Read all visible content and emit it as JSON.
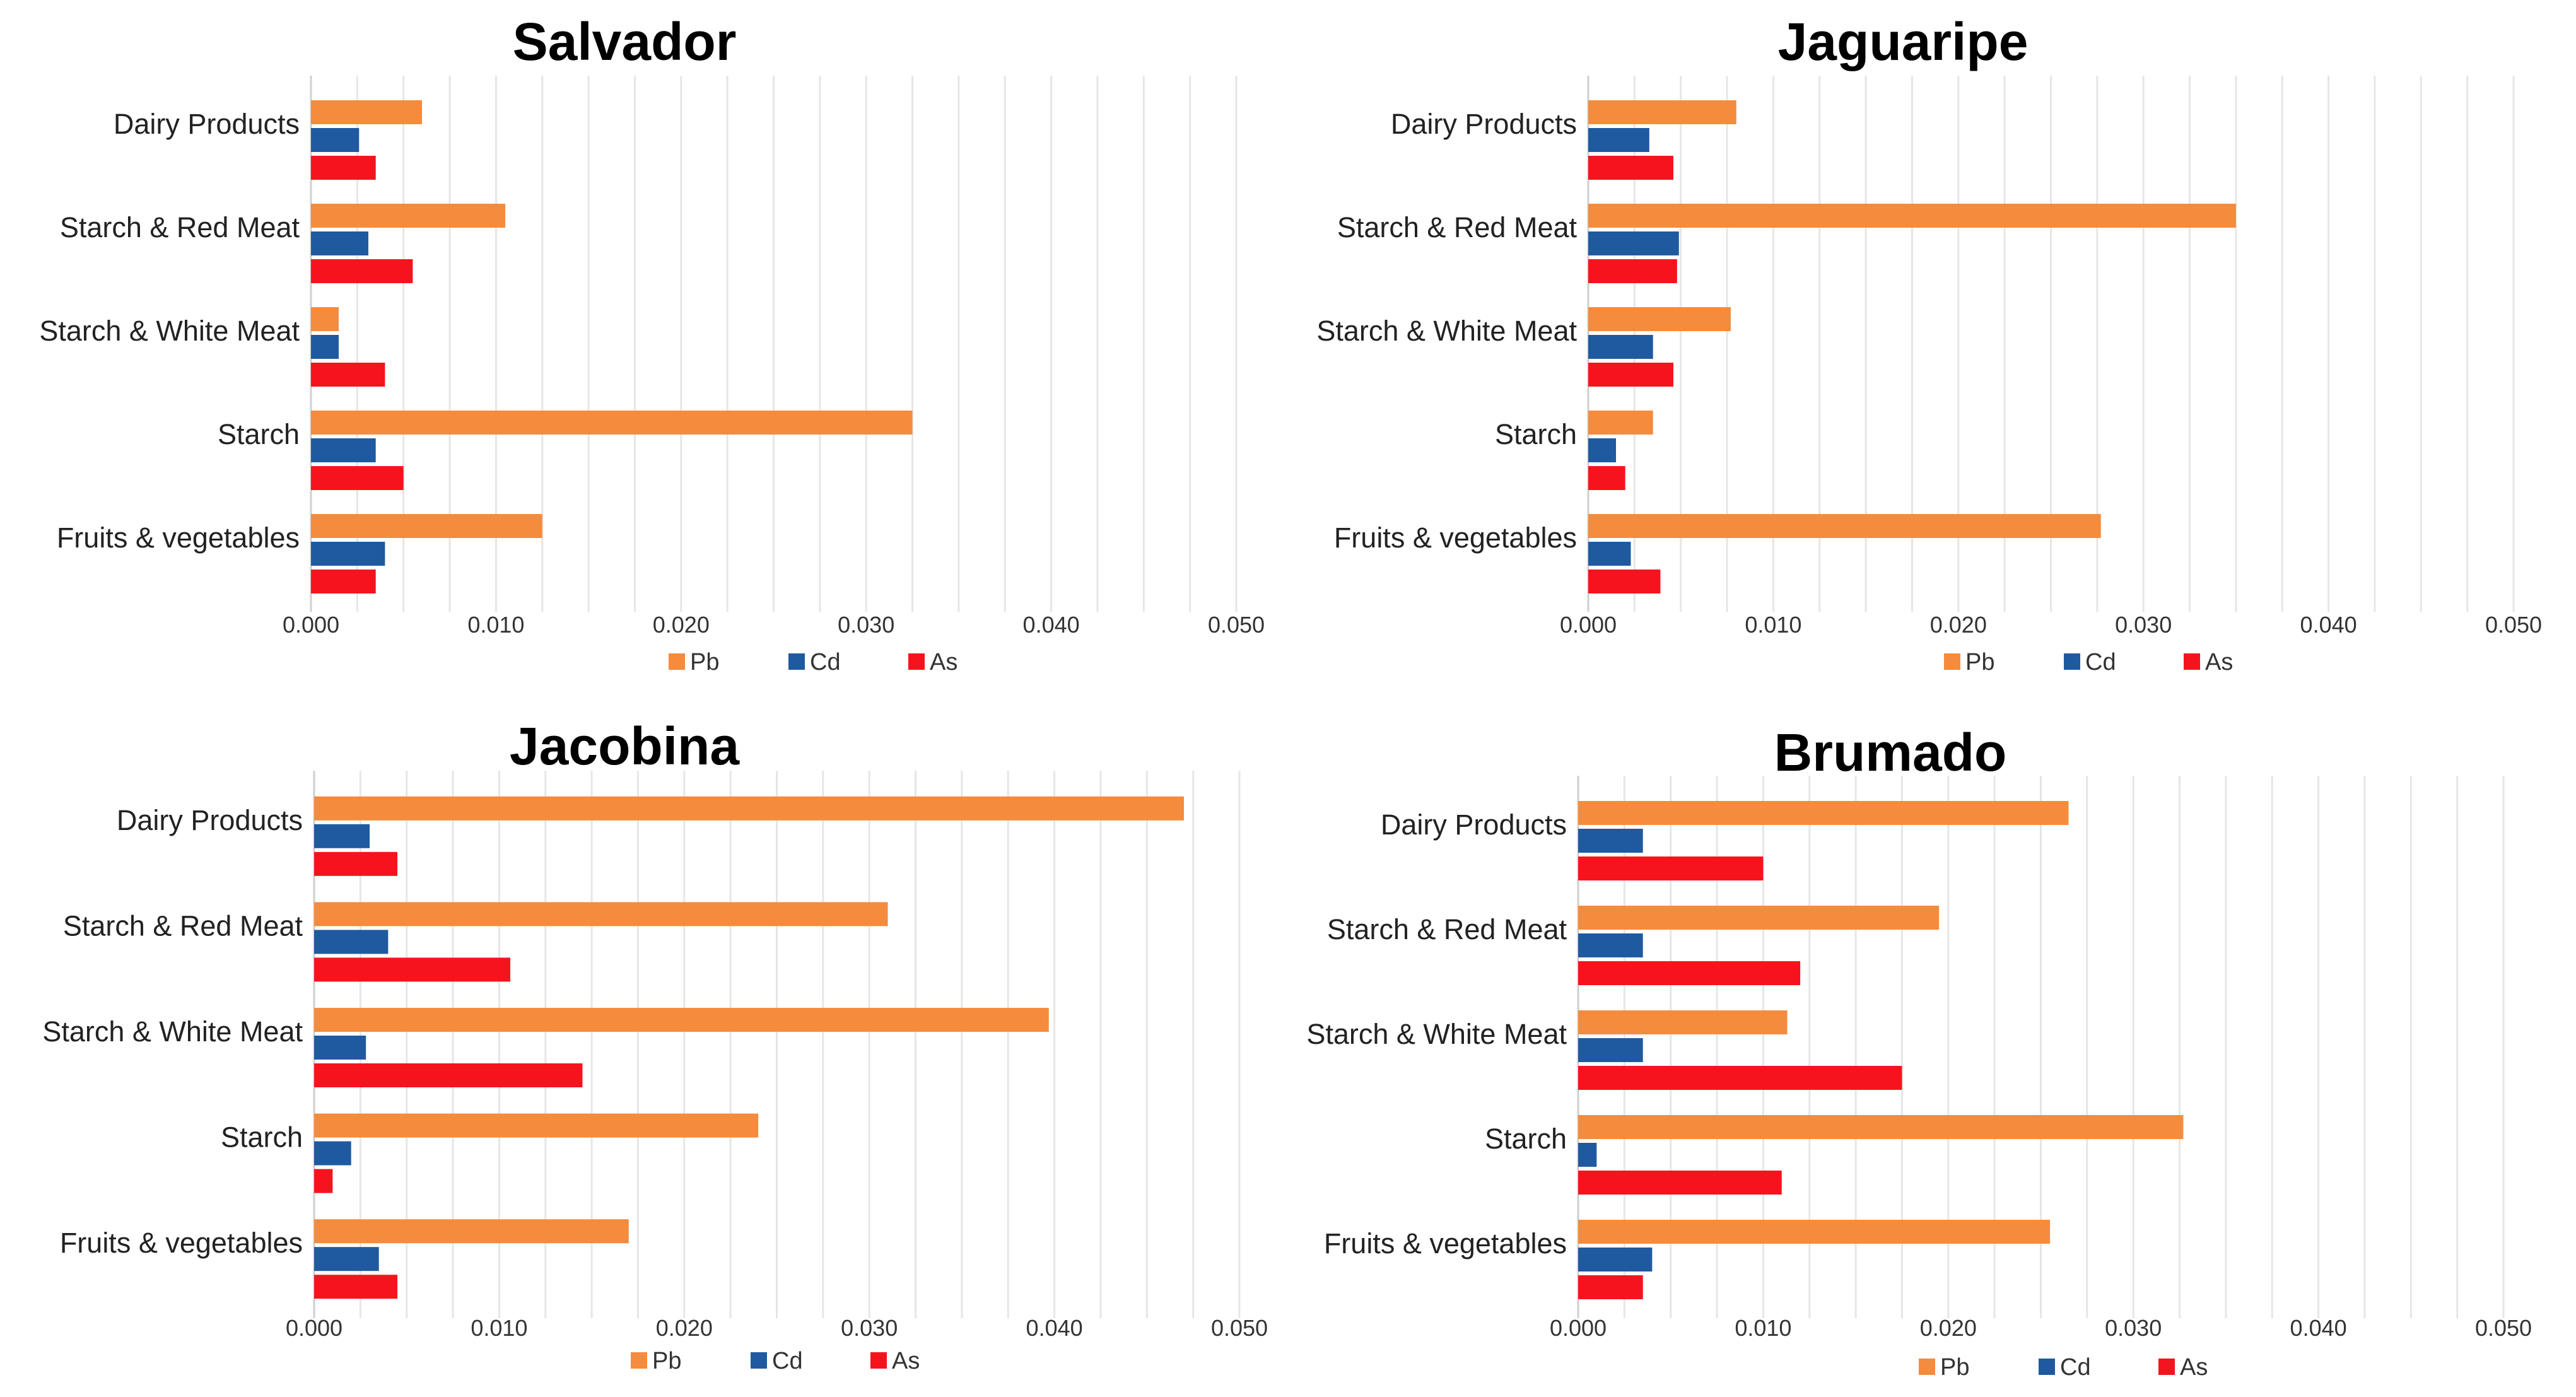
{
  "chart_data": [
    {
      "type": "bar",
      "orientation": "horizontal",
      "title": "Salvador",
      "categories": [
        "Dairy Products",
        "Starch & Red Meat",
        "Starch & White Meat",
        "Starch",
        "Fruits & vegetables"
      ],
      "series": [
        {
          "name": "Pb",
          "color": "#F58B3D",
          "values": [
            0.006,
            0.0105,
            0.0015,
            0.0325,
            0.0125
          ]
        },
        {
          "name": "Cd",
          "color": "#1F5AA0",
          "values": [
            0.0026,
            0.0031,
            0.0015,
            0.0035,
            0.004
          ]
        },
        {
          "name": "As",
          "color": "#F5141E",
          "values": [
            0.0035,
            0.0055,
            0.004,
            0.005,
            0.0035
          ]
        }
      ],
      "xlim": [
        0,
        0.05
      ],
      "xticks": [
        "0.000",
        "0.010",
        "0.020",
        "0.030",
        "0.040",
        "0.050"
      ],
      "grid": true,
      "legend": "bottom"
    },
    {
      "type": "bar",
      "orientation": "horizontal",
      "title": "Jaguaripe",
      "categories": [
        "Dairy Products",
        "Starch & Red Meat",
        "Starch & White Meat",
        "Starch",
        "Fruits & vegetables"
      ],
      "series": [
        {
          "name": "Pb",
          "color": "#F58B3D",
          "values": [
            0.008,
            0.035,
            0.0077,
            0.0035,
            0.0277
          ]
        },
        {
          "name": "Cd",
          "color": "#1F5AA0",
          "values": [
            0.0033,
            0.0049,
            0.0035,
            0.0015,
            0.0023
          ]
        },
        {
          "name": "As",
          "color": "#F5141E",
          "values": [
            0.0046,
            0.0048,
            0.0046,
            0.002,
            0.0039
          ]
        }
      ],
      "xlim": [
        0,
        0.05
      ],
      "xticks": [
        "0.000",
        "0.010",
        "0.020",
        "0.030",
        "0.040",
        "0.050"
      ],
      "grid": true,
      "legend": "bottom"
    },
    {
      "type": "bar",
      "orientation": "horizontal",
      "title": "Jacobina",
      "categories": [
        "Dairy Products",
        "Starch & Red Meat",
        "Starch & White Meat",
        "Starch",
        "Fruits & vegetables"
      ],
      "series": [
        {
          "name": "Pb",
          "color": "#F58B3D",
          "values": [
            0.047,
            0.031,
            0.0397,
            0.024,
            0.017
          ]
        },
        {
          "name": "Cd",
          "color": "#1F5AA0",
          "values": [
            0.003,
            0.004,
            0.0028,
            0.002,
            0.0035
          ]
        },
        {
          "name": "As",
          "color": "#F5141E",
          "values": [
            0.0045,
            0.0106,
            0.0145,
            0.001,
            0.0045
          ]
        }
      ],
      "xlim": [
        0,
        0.05
      ],
      "xticks": [
        "0.000",
        "0.010",
        "0.020",
        "0.030",
        "0.040",
        "0.050"
      ],
      "grid": true,
      "legend": "bottom"
    },
    {
      "type": "bar",
      "orientation": "horizontal",
      "title": "Brumado",
      "categories": [
        "Dairy Products",
        "Starch & Red Meat",
        "Starch & White Meat",
        "Starch",
        "Fruits & vegetables"
      ],
      "series": [
        {
          "name": "Pb",
          "color": "#F58B3D",
          "values": [
            0.0265,
            0.0195,
            0.0113,
            0.0327,
            0.0255
          ]
        },
        {
          "name": "Cd",
          "color": "#1F5AA0",
          "values": [
            0.0035,
            0.0035,
            0.0035,
            0.001,
            0.004
          ]
        },
        {
          "name": "As",
          "color": "#F5141E",
          "values": [
            0.01,
            0.012,
            0.0175,
            0.011,
            0.0035
          ]
        }
      ],
      "xlim": [
        0,
        0.05
      ],
      "xticks": [
        "0.000",
        "0.010",
        "0.020",
        "0.030",
        "0.040",
        "0.050"
      ],
      "grid": true,
      "legend": "bottom"
    }
  ]
}
